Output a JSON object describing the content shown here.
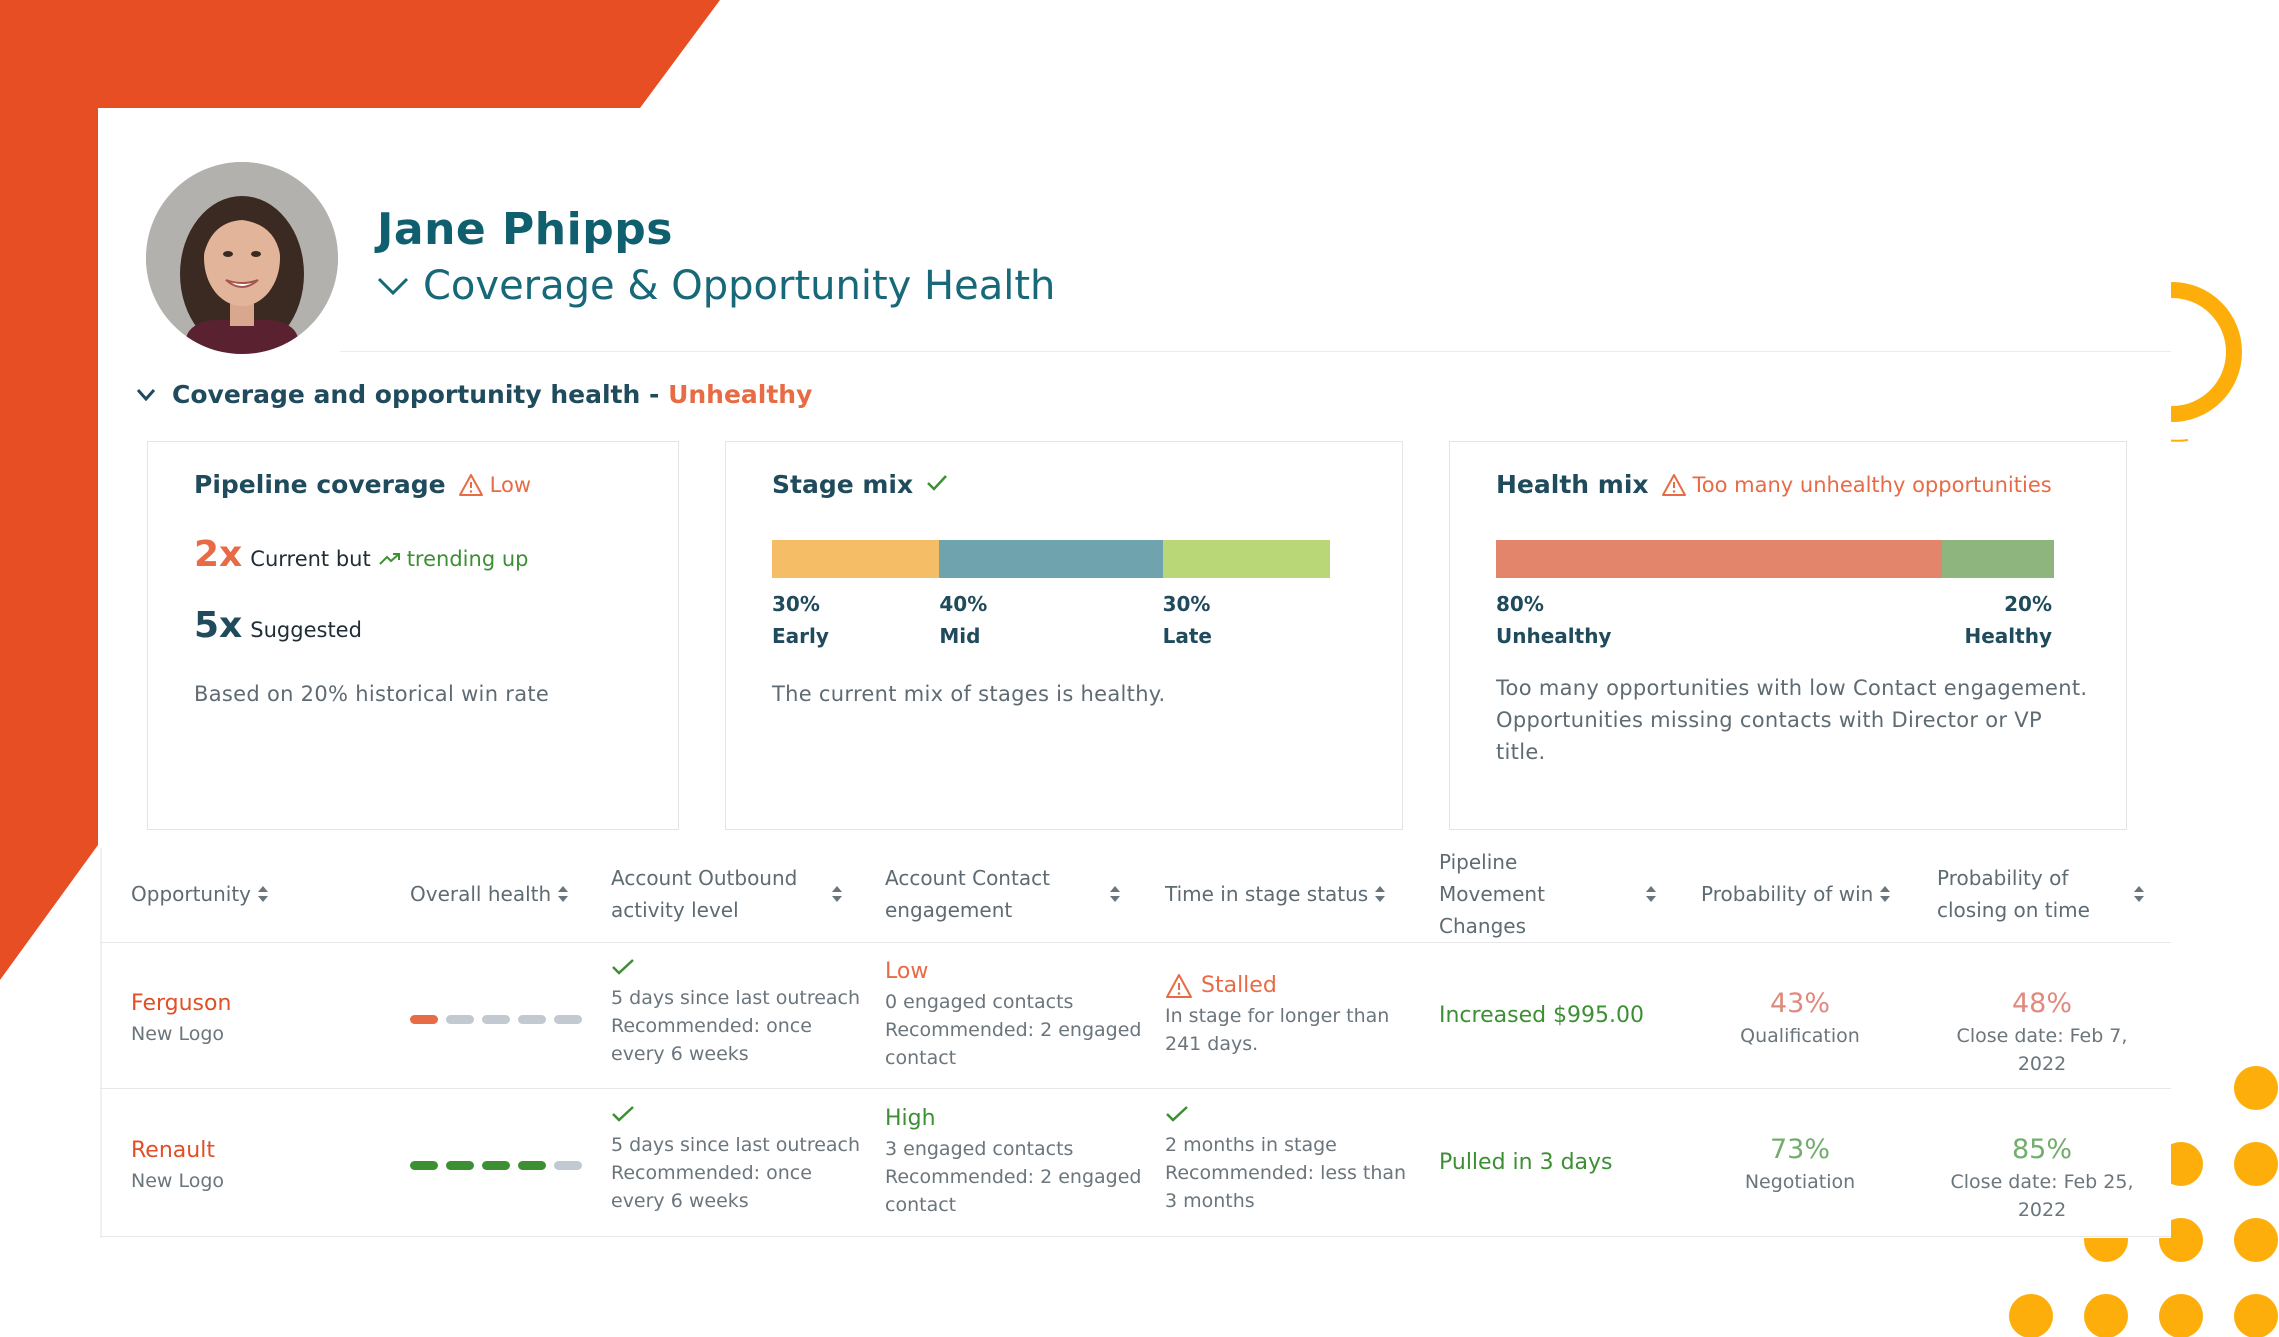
{
  "profile": {
    "name": "Jane Phipps",
    "subtitle": "Coverage & Opportunity Health"
  },
  "section": {
    "label": "Coverage and opportunity health - ",
    "status": "Unhealthy"
  },
  "pipeline_coverage": {
    "title": "Pipeline coverage",
    "status": "Low",
    "current_value": "2x",
    "current_text": "Current but",
    "trend_text": "trending up",
    "suggested_value": "5x",
    "suggested_text": "Suggested",
    "note": "Based on 20% historical win rate"
  },
  "stage_mix": {
    "title": "Stage mix",
    "segments": [
      {
        "pct": "30%",
        "label": "Early",
        "value": 30,
        "color": "#f4bd66"
      },
      {
        "pct": "40%",
        "label": "Mid",
        "value": 40,
        "color": "#6fa3ad"
      },
      {
        "pct": "30%",
        "label": "Late",
        "value": 30,
        "color": "#b9d777"
      }
    ],
    "note": "The current mix of stages is healthy."
  },
  "health_mix": {
    "title": "Health mix",
    "status": "Too many unhealthy opportunities",
    "segments": [
      {
        "pct": "80%",
        "label": "Unhealthy",
        "value": 80,
        "color": "#e2856a"
      },
      {
        "pct": "20%",
        "label": "Healthy",
        "value": 20,
        "color": "#8fb57f"
      }
    ],
    "note_1": "Too many opportunities with low Contact engagement.",
    "note_2": "Opportunities missing contacts with Director or VP title."
  },
  "table": {
    "columns": [
      "Opportunity",
      "Overall health",
      "Account Outbound activity level",
      "Account Contact engagement",
      "Time in stage status",
      "Pipeline Movement Changes",
      "Probability of win",
      "Probability of closing on time"
    ],
    "rows": [
      {
        "name": "Ferguson",
        "type": "New Logo",
        "health_filled": 1,
        "health_color": "#e76b45",
        "outbound_1": "5 days since last outreach",
        "outbound_2": "Recommended: once",
        "outbound_3": "every 6 weeks",
        "engagement_level": "Low",
        "engagement_1": "0 engaged contacts",
        "engagement_2": "Recommended: 2 engaged",
        "engagement_3": "contact",
        "stage_status": "Stalled",
        "stage_1": "In stage for longer than",
        "stage_2": "241 days.",
        "movement": "Increased $995.00",
        "win_pct": "43%",
        "win_stage": "Qualification",
        "close_pct": "48%",
        "close_date": "Close date: Feb 7, 2022"
      },
      {
        "name": "Renault",
        "type": "New Logo",
        "health_filled": 4,
        "health_color": "#3d8f34",
        "outbound_1": "5 days since last outreach",
        "outbound_2": "Recommended: once",
        "outbound_3": "every 6 weeks",
        "engagement_level": "High",
        "engagement_1": "3 engaged contacts",
        "engagement_2": "Recommended: 2 engaged",
        "engagement_3": "contact",
        "stage_1": "2 months in stage",
        "stage_2": "Recommended: less than",
        "stage_3": "3 months",
        "movement": "Pulled in 3 days",
        "win_pct": "73%",
        "win_stage": "Negotiation",
        "close_pct": "85%",
        "close_date": "Close date: Feb 25, 2022"
      }
    ]
  },
  "colors": {
    "brand_orange": "#e84e23",
    "accent_yellow": "#fdae0a",
    "teal": "#0f5f6e",
    "bad": "#e76b45",
    "good": "#3d8f34"
  }
}
